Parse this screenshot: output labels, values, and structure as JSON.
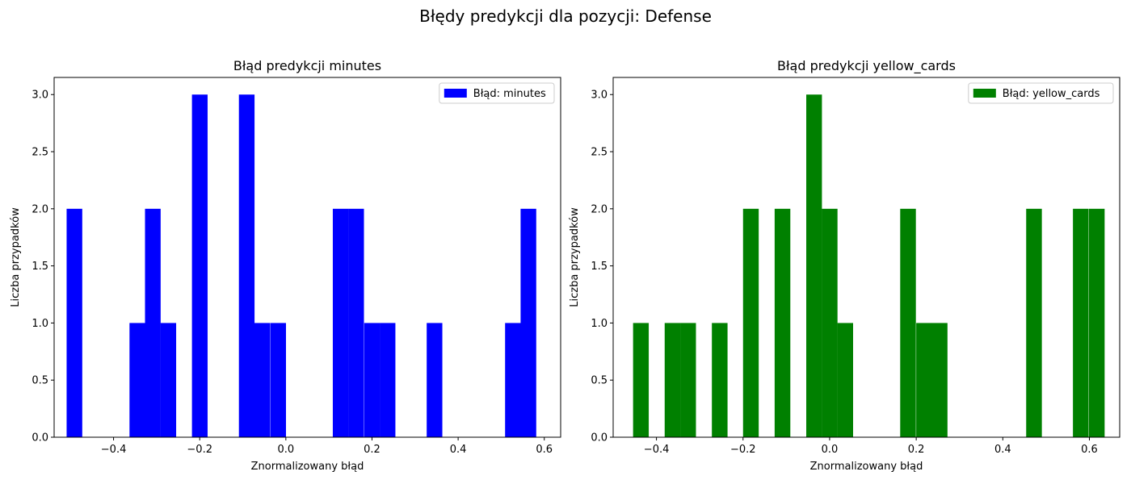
{
  "suptitle": "Błędy predykcji dla pozycji: Defense",
  "chart_data": [
    {
      "type": "bar",
      "title": "Błąd predykcji minutes",
      "xlabel": "Znormalizowany błąd",
      "ylabel": "Liczba przypadków",
      "legend": "Błąd: minutes",
      "legend_position": "top-right",
      "color": "#0000ff",
      "xlim": [
        -0.538,
        0.638
      ],
      "ylim": [
        0,
        3.15
      ],
      "bin_width": 0.0363,
      "xticks": [
        -0.4,
        -0.2,
        0.0,
        0.2,
        0.4,
        0.6
      ],
      "xtick_labels": [
        "−0.4",
        "−0.2",
        "0.0",
        "0.2",
        "0.4",
        "0.6"
      ],
      "yticks": [
        0,
        0.5,
        1,
        1.5,
        2,
        2.5,
        3
      ],
      "ytick_labels": [
        "0.0",
        "0.5",
        "1.0",
        "1.5",
        "2.0",
        "2.5",
        "3.0"
      ],
      "bins": [
        {
          "x": -0.509,
          "count": 2
        },
        {
          "x": -0.363,
          "count": 1
        },
        {
          "x": -0.327,
          "count": 2
        },
        {
          "x": -0.291,
          "count": 1
        },
        {
          "x": -0.218,
          "count": 3
        },
        {
          "x": -0.109,
          "count": 3
        },
        {
          "x": -0.073,
          "count": 1
        },
        {
          "x": -0.036,
          "count": 1
        },
        {
          "x": 0.109,
          "count": 2
        },
        {
          "x": 0.145,
          "count": 2
        },
        {
          "x": 0.182,
          "count": 1
        },
        {
          "x": 0.218,
          "count": 1
        },
        {
          "x": 0.327,
          "count": 1
        },
        {
          "x": 0.509,
          "count": 1
        },
        {
          "x": 0.545,
          "count": 2
        }
      ]
    },
    {
      "type": "bar",
      "title": "Błąd predykcji yellow_cards",
      "xlabel": "Znormalizowany błąd",
      "ylabel": "Liczba przypadków",
      "legend": "Błąd: yellow_cards",
      "legend_position": "top-right",
      "color": "#008000",
      "xlim": [
        -0.5,
        0.67
      ],
      "ylim": [
        0,
        3.15
      ],
      "bin_width": 0.0362,
      "xticks": [
        -0.4,
        -0.2,
        0.0,
        0.2,
        0.4,
        0.6
      ],
      "xtick_labels": [
        "−0.4",
        "−0.2",
        "0.0",
        "0.2",
        "0.4",
        "0.6"
      ],
      "yticks": [
        0,
        0.5,
        1,
        1.5,
        2,
        2.5,
        3
      ],
      "ytick_labels": [
        "0.0",
        "0.5",
        "1.0",
        "1.5",
        "2.0",
        "2.5",
        "3.0"
      ],
      "bins": [
        {
          "x": -0.454,
          "count": 1
        },
        {
          "x": -0.381,
          "count": 1
        },
        {
          "x": -0.345,
          "count": 1
        },
        {
          "x": -0.272,
          "count": 1
        },
        {
          "x": -0.2,
          "count": 2
        },
        {
          "x": -0.127,
          "count": 2
        },
        {
          "x": -0.054,
          "count": 3
        },
        {
          "x": -0.018,
          "count": 2
        },
        {
          "x": 0.018,
          "count": 1
        },
        {
          "x": 0.163,
          "count": 2
        },
        {
          "x": 0.2,
          "count": 1
        },
        {
          "x": 0.236,
          "count": 1
        },
        {
          "x": 0.454,
          "count": 2
        },
        {
          "x": 0.562,
          "count": 2
        },
        {
          "x": 0.599,
          "count": 2
        }
      ]
    }
  ]
}
